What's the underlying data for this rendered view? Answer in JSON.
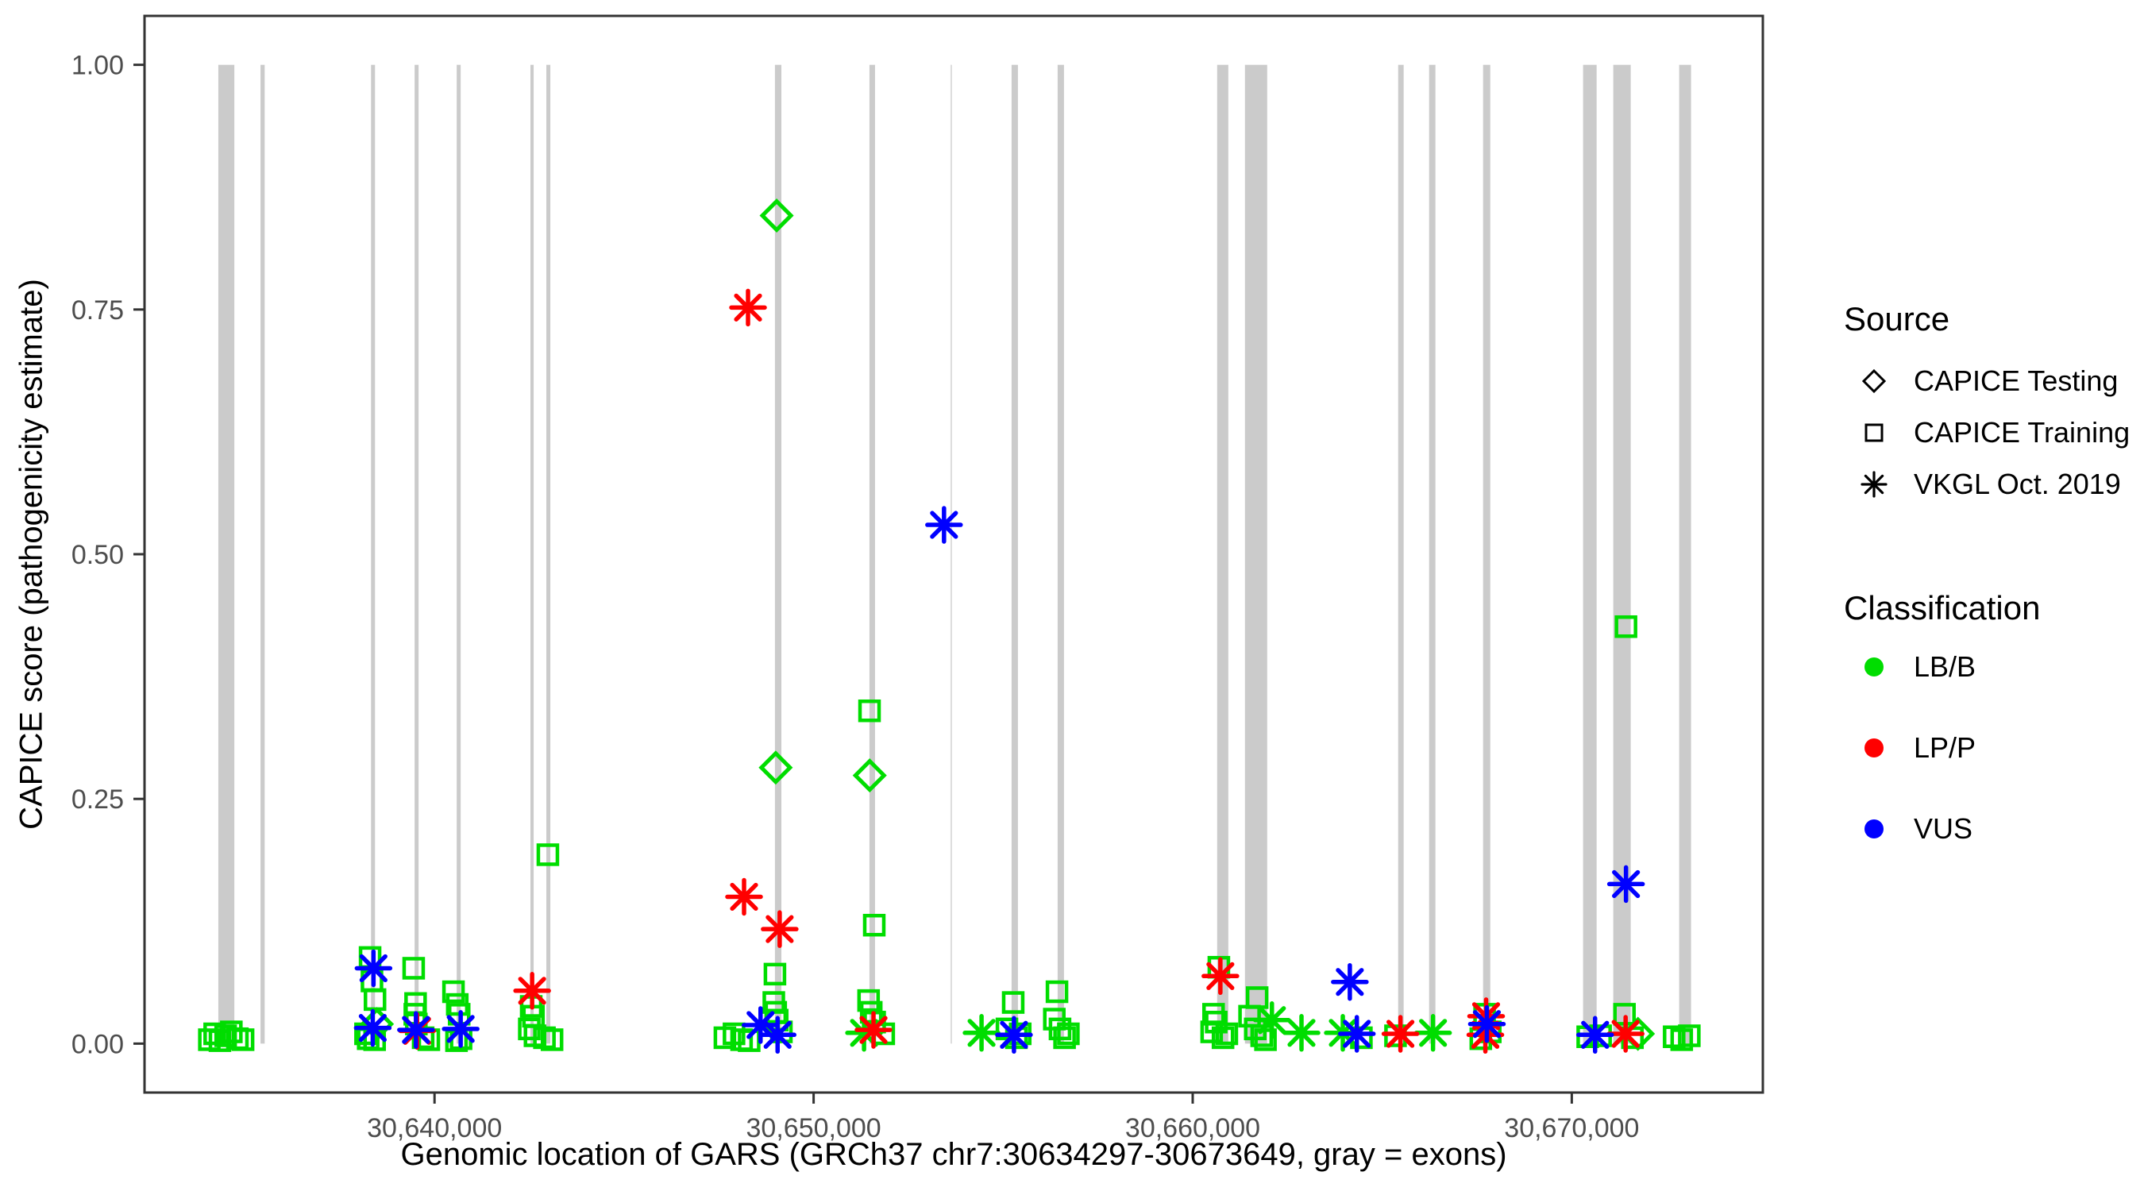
{
  "figure": {
    "kind": "ggplot-style scatter plot",
    "background": "#ffffff"
  },
  "chart_data": {
    "type": "scatter",
    "title": "",
    "xlabel": "Genomic location of GARS (GRCh37 chr7:30634297-30673649, gray = exons)",
    "ylabel": "CAPICE score (pathogenicity estimate)",
    "xlim": [
      30632350,
      30675040
    ],
    "ylim": [
      -0.05,
      1.05
    ],
    "grid": false,
    "panel_border_color": "#333333",
    "tick_label_color": "#4d4d4d",
    "x_ticks": [
      {
        "pos": 30640000,
        "label": "30,640,000"
      },
      {
        "pos": 30650000,
        "label": "30,650,000"
      },
      {
        "pos": 30660000,
        "label": "30,660,000"
      },
      {
        "pos": 30670000,
        "label": "30,670,000"
      }
    ],
    "y_ticks": [
      {
        "v": 0.0,
        "label": "0.00"
      },
      {
        "v": 0.25,
        "label": "0.25"
      },
      {
        "v": 0.5,
        "label": "0.50"
      },
      {
        "v": 0.75,
        "label": "0.75"
      },
      {
        "v": 1.0,
        "label": "1.00"
      }
    ],
    "exon_color": "#cbcbcb",
    "exon_thin_color": "#dddddd",
    "exons": [
      {
        "start": 30634297,
        "end": 30634720
      },
      {
        "start": 30635410,
        "end": 30635520
      },
      {
        "start": 30638325,
        "end": 30638430
      },
      {
        "start": 30639475,
        "end": 30639580
      },
      {
        "start": 30640585,
        "end": 30640690
      },
      {
        "start": 30642530,
        "end": 30642615
      },
      {
        "start": 30642950,
        "end": 30643055
      },
      {
        "start": 30648980,
        "end": 30649150
      },
      {
        "start": 30651473,
        "end": 30651620
      },
      {
        "start": 30653610,
        "end": 30653650,
        "thin": true
      },
      {
        "start": 30655222,
        "end": 30655390
      },
      {
        "start": 30656437,
        "end": 30656605
      },
      {
        "start": 30660645,
        "end": 30660940
      },
      {
        "start": 30661378,
        "end": 30661965
      },
      {
        "start": 30665420,
        "end": 30665565
      },
      {
        "start": 30666236,
        "end": 30666403
      },
      {
        "start": 30667660,
        "end": 30667850
      },
      {
        "start": 30670298,
        "end": 30670655
      },
      {
        "start": 30671094,
        "end": 30671555
      },
      {
        "start": 30672832,
        "end": 30673146
      }
    ],
    "legend": {
      "source": {
        "title": "Source",
        "items": [
          {
            "shape": "diamond",
            "label": "CAPICE Testing"
          },
          {
            "shape": "square",
            "label": "CAPICE Training"
          },
          {
            "shape": "asterisk",
            "label": "VKGL Oct. 2019"
          }
        ]
      },
      "classification": {
        "title": "Classification",
        "items": [
          {
            "label": "LB/B",
            "color": "#00dd00"
          },
          {
            "label": "LP/P",
            "color": "#ff0000"
          },
          {
            "label": "VUS",
            "color": "#0000ff"
          }
        ]
      }
    },
    "class_colors": {
      "LB/B": "#00dd00",
      "LP/P": "#ff0000",
      "VUS": "#0000ff"
    },
    "points_columns": [
      "position",
      "score",
      "shape",
      "classification"
    ],
    "points": [
      [
        30649025,
        0.846,
        "diamond",
        "LB/B"
      ],
      [
        30648270,
        0.752,
        "asterisk",
        "LP/P"
      ],
      [
        30653440,
        0.53,
        "asterisk",
        "VUS"
      ],
      [
        30671430,
        0.426,
        "square",
        "LB/B"
      ],
      [
        30651475,
        0.34,
        "square",
        "LB/B"
      ],
      [
        30649000,
        0.282,
        "diamond",
        "LB/B"
      ],
      [
        30651480,
        0.274,
        "diamond",
        "LB/B"
      ],
      [
        30642990,
        0.193,
        "square",
        "LB/B"
      ],
      [
        30671430,
        0.163,
        "asterisk",
        "VUS"
      ],
      [
        30648165,
        0.15,
        "asterisk",
        "LP/P"
      ],
      [
        30651600,
        0.121,
        "square",
        "LB/B"
      ],
      [
        30649105,
        0.117,
        "asterisk",
        "LP/P"
      ],
      [
        30634060,
        0.004,
        "square",
        "LB/B"
      ],
      [
        30634200,
        0.01,
        "square",
        "LB/B"
      ],
      [
        30634340,
        0.003,
        "square",
        "LB/B"
      ],
      [
        30634490,
        0.008,
        "square",
        "LB/B"
      ],
      [
        30634640,
        0.012,
        "square",
        "LB/B"
      ],
      [
        30634800,
        0.005,
        "square",
        "LB/B"
      ],
      [
        30634950,
        0.004,
        "square",
        "LB/B"
      ],
      [
        30638300,
        0.088,
        "square",
        "LB/B"
      ],
      [
        30638350,
        0.064,
        "square",
        "LB/B"
      ],
      [
        30638430,
        0.045,
        "square",
        "LB/B"
      ],
      [
        30638480,
        0.02,
        "diamond",
        "LB/B"
      ],
      [
        30638180,
        0.01,
        "square",
        "LB/B"
      ],
      [
        30638250,
        0.005,
        "square",
        "LB/B"
      ],
      [
        30638420,
        0.004,
        "square",
        "LB/B"
      ],
      [
        30638390,
        0.077,
        "asterisk",
        "VUS"
      ],
      [
        30638370,
        0.016,
        "asterisk",
        "VUS"
      ],
      [
        30639450,
        0.077,
        "square",
        "LB/B"
      ],
      [
        30639500,
        0.041,
        "square",
        "LB/B"
      ],
      [
        30639480,
        0.03,
        "square",
        "LB/B"
      ],
      [
        30639520,
        0.02,
        "square",
        "LB/B"
      ],
      [
        30639510,
        0.014,
        "asterisk",
        "VUS"
      ],
      [
        30639540,
        0.013,
        "asterisk",
        "LP/P"
      ],
      [
        30639700,
        0.006,
        "square",
        "LB/B"
      ],
      [
        30639850,
        0.004,
        "square",
        "LB/B"
      ],
      [
        30640500,
        0.053,
        "square",
        "LB/B"
      ],
      [
        30640600,
        0.04,
        "square",
        "LB/B"
      ],
      [
        30640650,
        0.03,
        "square",
        "LB/B"
      ],
      [
        30640690,
        0.015,
        "asterisk",
        "VUS"
      ],
      [
        30640700,
        0.005,
        "square",
        "LB/B"
      ],
      [
        30640580,
        0.003,
        "square",
        "LB/B"
      ],
      [
        30642575,
        0.054,
        "asterisk",
        "LP/P"
      ],
      [
        30642550,
        0.038,
        "square",
        "LB/B"
      ],
      [
        30642610,
        0.028,
        "square",
        "LB/B"
      ],
      [
        30642500,
        0.015,
        "square",
        "LB/B"
      ],
      [
        30642650,
        0.008,
        "square",
        "LB/B"
      ],
      [
        30642900,
        0.006,
        "square",
        "LB/B"
      ],
      [
        30643100,
        0.004,
        "square",
        "LB/B"
      ],
      [
        30648980,
        0.071,
        "square",
        "LB/B"
      ],
      [
        30648950,
        0.042,
        "square",
        "LB/B"
      ],
      [
        30649000,
        0.032,
        "square",
        "LB/B"
      ],
      [
        30649040,
        0.024,
        "square",
        "LB/B"
      ],
      [
        30648600,
        0.019,
        "asterisk",
        "VUS"
      ],
      [
        30649050,
        0.009,
        "asterisk",
        "VUS"
      ],
      [
        30647660,
        0.006,
        "square",
        "LB/B"
      ],
      [
        30647900,
        0.01,
        "square",
        "LB/B"
      ],
      [
        30648100,
        0.004,
        "square",
        "LB/B"
      ],
      [
        30648300,
        0.003,
        "square",
        "LB/B"
      ],
      [
        30649150,
        0.012,
        "square",
        "LB/B"
      ],
      [
        30651450,
        0.044,
        "square",
        "LB/B"
      ],
      [
        30651520,
        0.032,
        "square",
        "LB/B"
      ],
      [
        30651580,
        0.014,
        "asterisk",
        "LP/P"
      ],
      [
        30651330,
        0.011,
        "asterisk",
        "LB/B"
      ],
      [
        30651850,
        0.01,
        "square",
        "LB/B"
      ],
      [
        30651610,
        0.022,
        "square",
        "LB/B"
      ],
      [
        30654430,
        0.011,
        "asterisk",
        "LB/B"
      ],
      [
        30655265,
        0.042,
        "square",
        "LB/B"
      ],
      [
        30655285,
        0.009,
        "asterisk",
        "VUS"
      ],
      [
        30655100,
        0.015,
        "square",
        "LB/B"
      ],
      [
        30655350,
        0.006,
        "square",
        "LB/B"
      ],
      [
        30655450,
        0.01,
        "square",
        "LB/B"
      ],
      [
        30656420,
        0.053,
        "square",
        "LB/B"
      ],
      [
        30656350,
        0.025,
        "square",
        "LB/B"
      ],
      [
        30656500,
        0.015,
        "square",
        "LB/B"
      ],
      [
        30656620,
        0.006,
        "square",
        "LB/B"
      ],
      [
        30656720,
        0.01,
        "square",
        "LB/B"
      ],
      [
        30660690,
        0.078,
        "square",
        "LB/B"
      ],
      [
        30660730,
        0.069,
        "asterisk",
        "LP/P"
      ],
      [
        30660550,
        0.03,
        "square",
        "LB/B"
      ],
      [
        30660620,
        0.022,
        "square",
        "LB/B"
      ],
      [
        30660500,
        0.012,
        "square",
        "LB/B"
      ],
      [
        30660800,
        0.006,
        "square",
        "LB/B"
      ],
      [
        30660900,
        0.01,
        "square",
        "LB/B"
      ],
      [
        30661700,
        0.047,
        "square",
        "LB/B"
      ],
      [
        30662090,
        0.024,
        "asterisk",
        "LB/B"
      ],
      [
        30661500,
        0.028,
        "square",
        "LB/B"
      ],
      [
        30661650,
        0.015,
        "square",
        "LB/B"
      ],
      [
        30661820,
        0.008,
        "square",
        "LB/B"
      ],
      [
        30661920,
        0.004,
        "square",
        "LB/B"
      ],
      [
        30662870,
        0.011,
        "asterisk",
        "LB/B"
      ],
      [
        30663960,
        0.011,
        "asterisk",
        "LB/B"
      ],
      [
        30664145,
        0.063,
        "asterisk",
        "VUS"
      ],
      [
        30664330,
        0.01,
        "asterisk",
        "VUS"
      ],
      [
        30664450,
        0.006,
        "square",
        "LB/B"
      ],
      [
        30665480,
        0.01,
        "asterisk",
        "LP/P"
      ],
      [
        30665350,
        0.008,
        "square",
        "LB/B"
      ],
      [
        30666340,
        0.011,
        "asterisk",
        "LB/B"
      ],
      [
        30667700,
        0.03,
        "square",
        "LB/B"
      ],
      [
        30667740,
        0.028,
        "asterisk",
        "LP/P"
      ],
      [
        30667760,
        0.02,
        "asterisk",
        "VUS"
      ],
      [
        30667720,
        0.009,
        "asterisk",
        "LP/P"
      ],
      [
        30667600,
        0.005,
        "square",
        "LB/B"
      ],
      [
        30667850,
        0.012,
        "square",
        "LB/B"
      ],
      [
        30670615,
        0.009,
        "asterisk",
        "VUS"
      ],
      [
        30670420,
        0.007,
        "square",
        "LB/B"
      ],
      [
        30670760,
        0.008,
        "square",
        "LB/B"
      ],
      [
        30671390,
        0.03,
        "square",
        "LB/B"
      ],
      [
        30671420,
        0.01,
        "asterisk",
        "LP/P"
      ],
      [
        30671745,
        0.01,
        "diamond",
        "LB/B"
      ],
      [
        30671600,
        0.006,
        "square",
        "LB/B"
      ],
      [
        30672700,
        0.007,
        "square",
        "LB/B"
      ],
      [
        30672900,
        0.004,
        "square",
        "LB/B"
      ],
      [
        30673100,
        0.008,
        "square",
        "LB/B"
      ]
    ]
  }
}
